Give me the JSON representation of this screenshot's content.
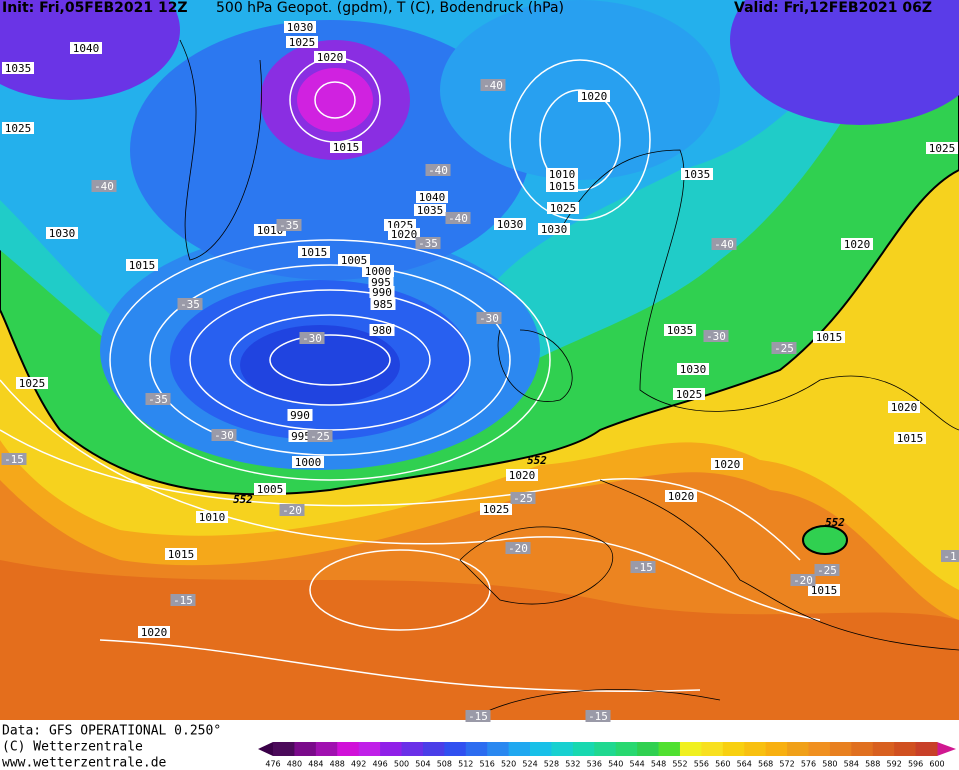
{
  "header": {
    "init": "Init: Fri,05FEB2021 12Z",
    "title": "500 hPa Geopot. (gpdm), T (C), Bodendruck (hPa)",
    "valid": "Valid: Fri,12FEB2021 06Z"
  },
  "footer": {
    "source": "Data: GFS OPERATIONAL 0.250°",
    "copyright": "(C) Wetterzentrale",
    "url": "www.wetterzentrale.de"
  },
  "map": {
    "pressure_labels": [
      "1030",
      "1025",
      "1040",
      "1020",
      "1035",
      "1025",
      "1015",
      "1020",
      "1010",
      "1015",
      "1035",
      "1040",
      "1035",
      "1025",
      "1030",
      "1030",
      "1025",
      "1020",
      "1010",
      "1030",
      "1015",
      "1005",
      "1000",
      "995",
      "990",
      "985",
      "1015",
      "980",
      "1035",
      "1030",
      "1025",
      "1015",
      "1020",
      "1020",
      "1015",
      "1025",
      "990",
      "995",
      "1000",
      "1020",
      "1020",
      "1005",
      "1010",
      "1020",
      "1025",
      "1015",
      "1015",
      "1020",
      "1025"
    ],
    "temperature_labels": [
      "-40",
      "-40",
      "-40",
      "-40",
      "-35",
      "-35",
      "-35",
      "-30",
      "-30",
      "-30",
      "-25",
      "-35",
      "-30",
      "-25",
      "-15",
      "-20",
      "-25",
      "-20",
      "-15",
      "-15",
      "-25",
      "-20",
      "-15",
      "-15",
      "-1",
      "-40"
    ],
    "thickness_labels": [
      "552",
      "552",
      "552"
    ]
  },
  "colorbar": {
    "ticks": [
      476,
      480,
      484,
      488,
      492,
      496,
      500,
      504,
      508,
      512,
      516,
      520,
      524,
      528,
      532,
      536,
      540,
      544,
      548,
      552,
      556,
      560,
      564,
      568,
      572,
      576,
      580,
      584,
      588,
      592,
      596,
      600
    ]
  }
}
